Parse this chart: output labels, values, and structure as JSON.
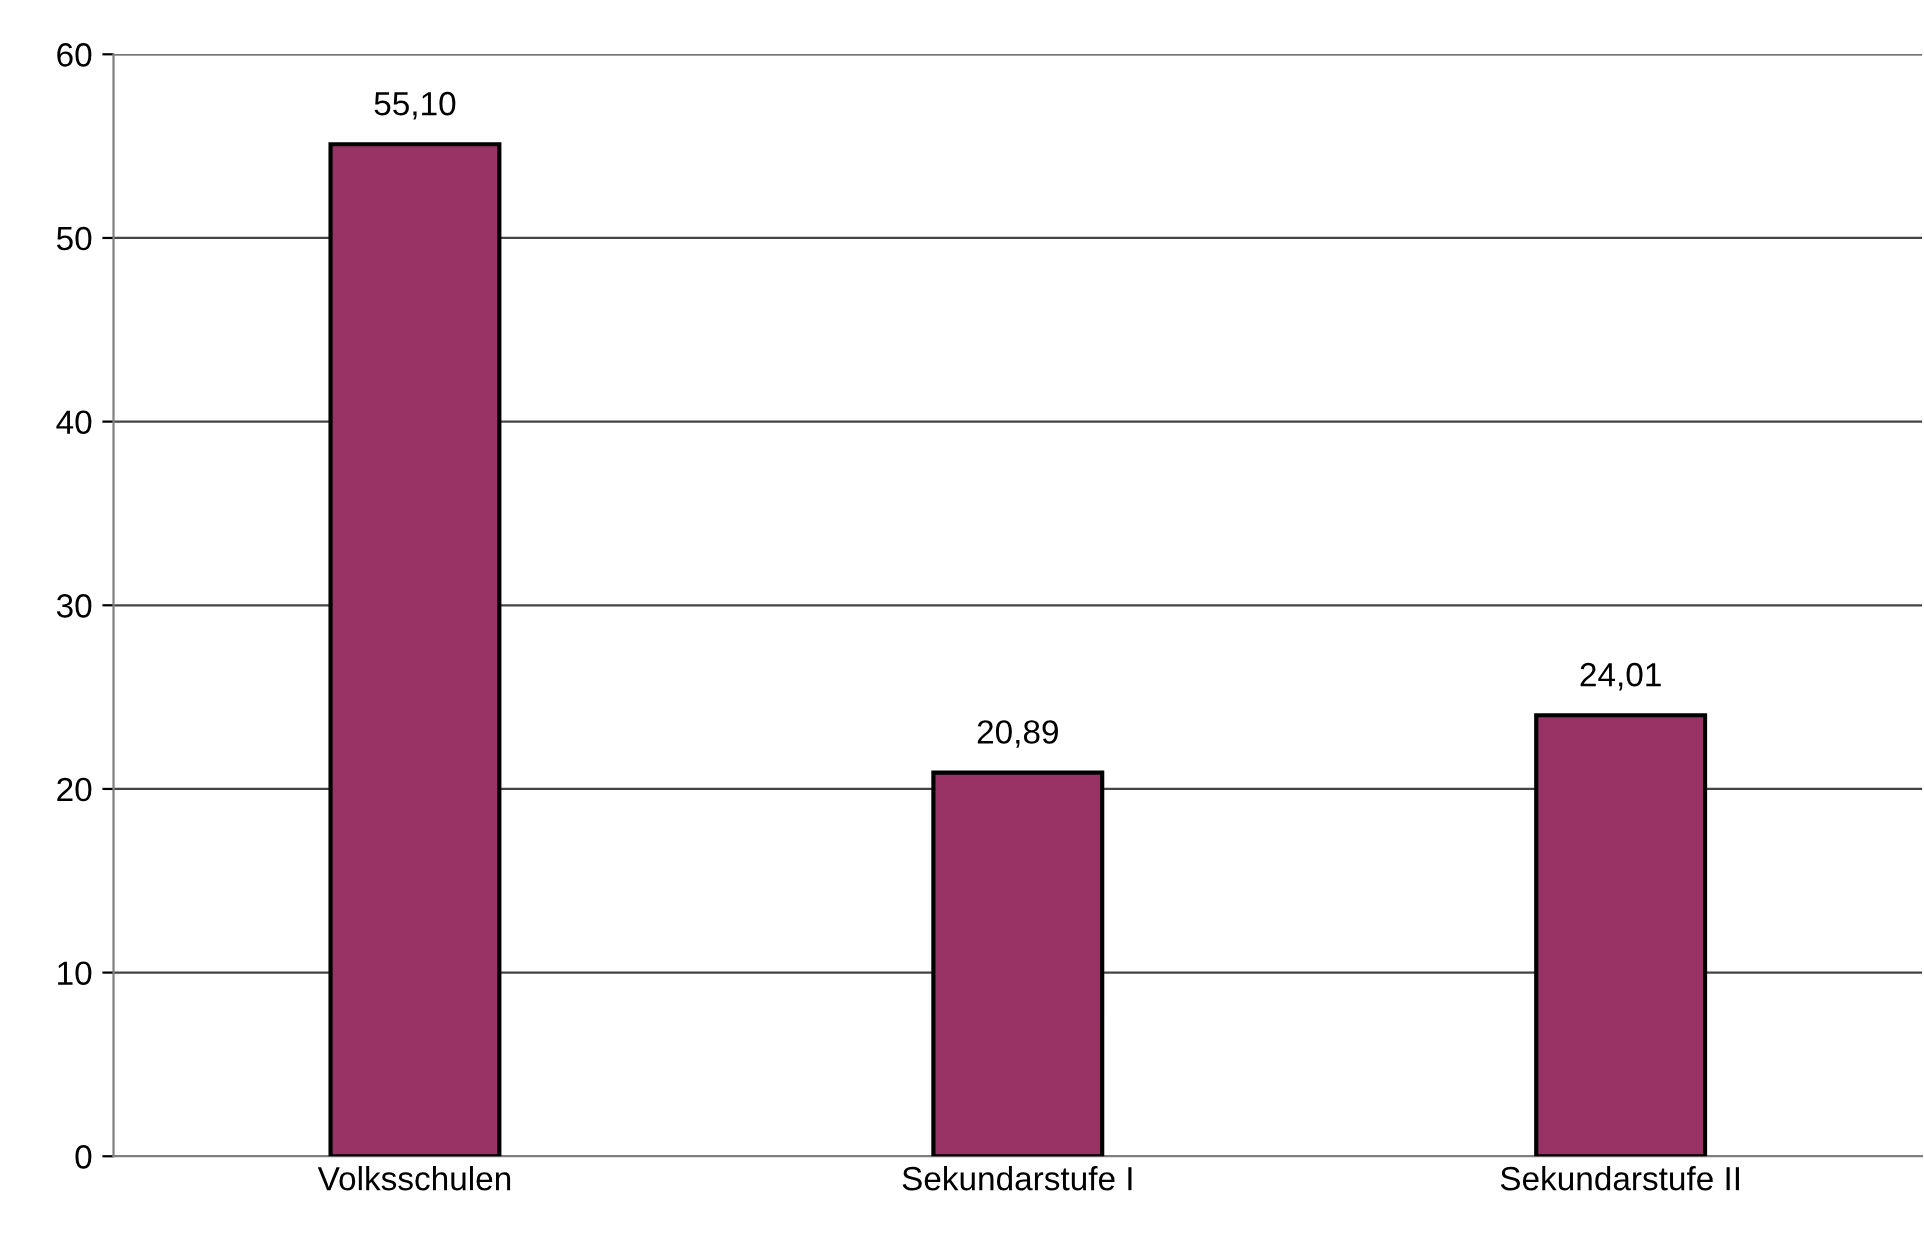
{
  "chart_data": {
    "type": "bar",
    "categories": [
      "Volksschulen",
      "Sekundarstufe I",
      "Sekundarstufe II"
    ],
    "values": [
      55.1,
      20.89,
      24.01
    ],
    "value_labels": [
      "55,10",
      "20,89",
      "24,01"
    ],
    "color": "#993366",
    "ylim": [
      0,
      60
    ],
    "yticks": [
      0,
      10,
      20,
      30,
      40,
      50,
      60
    ],
    "grid": "y",
    "legend": false
  }
}
